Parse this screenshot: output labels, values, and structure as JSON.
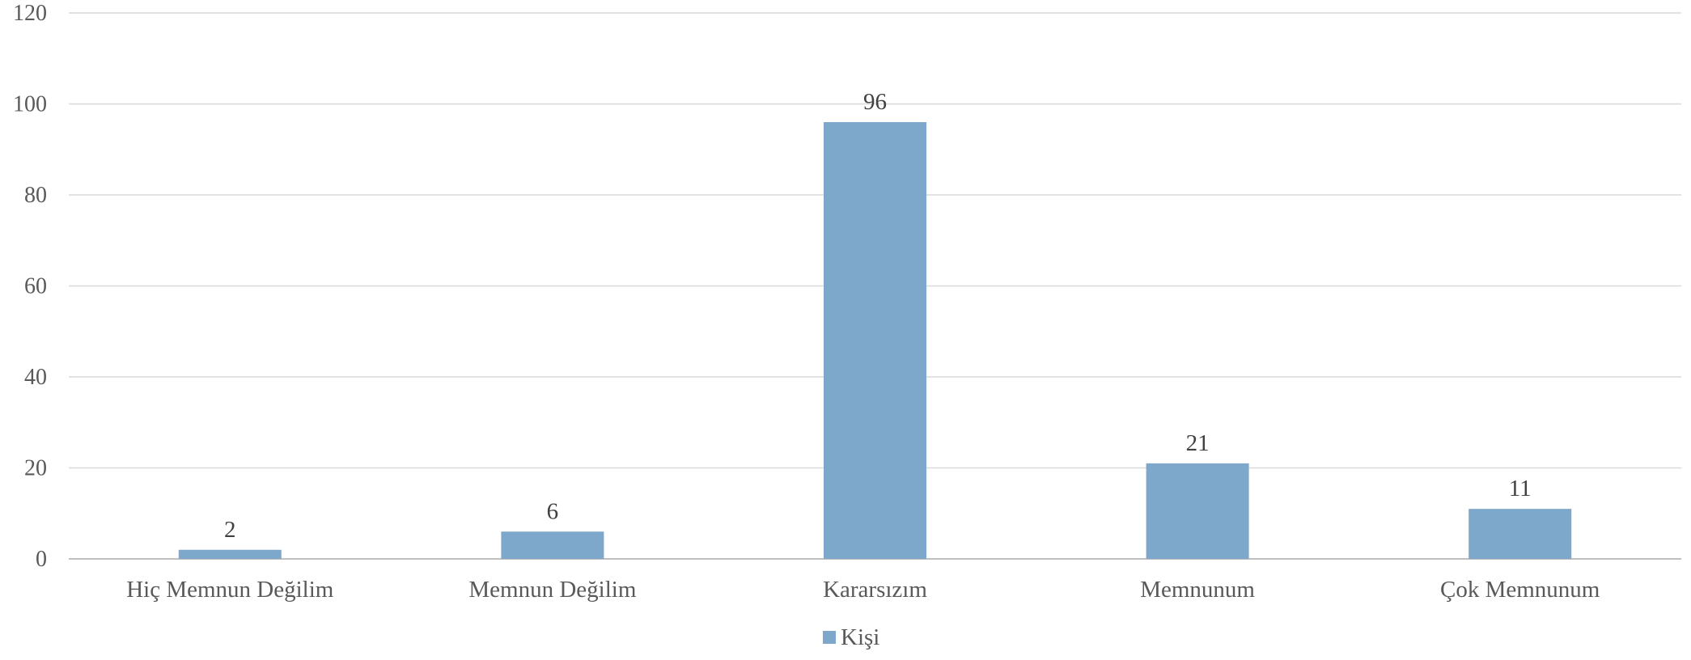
{
  "chart_data": {
    "type": "bar",
    "categories": [
      "Hiç Memnun Değilim",
      "Memnun Değilim",
      "Kararsızım",
      "Memnunum",
      "Çok Memnunum"
    ],
    "series": [
      {
        "name": "Kişi",
        "values": [
          2,
          6,
          96,
          21,
          11
        ],
        "color": "#7EA8CB"
      }
    ],
    "title": "",
    "xlabel": "",
    "ylabel": "",
    "ylim": [
      0,
      120
    ],
    "yticks": [
      0,
      20,
      40,
      60,
      80,
      100,
      120
    ],
    "data_labels": true,
    "grid": true,
    "legend_position": "bottom"
  },
  "colors": {
    "bar": "#7EA8CB",
    "grid": "#D9D9D9",
    "axis": "#BFBFBF",
    "text": "#595959",
    "label": "#404040"
  }
}
